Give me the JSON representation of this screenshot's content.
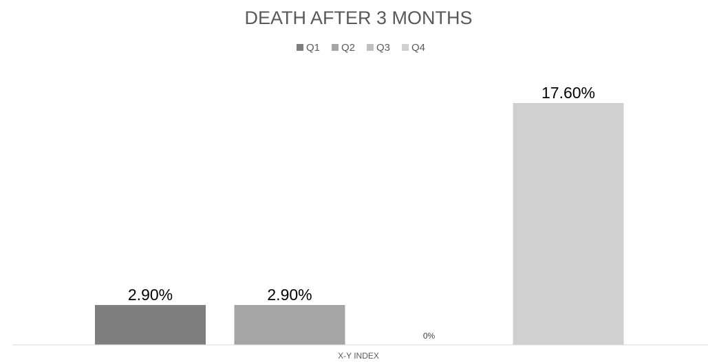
{
  "chart_data": {
    "type": "bar",
    "title": "DEATH AFTER 3 MONTHS",
    "xlabel": "X-Y INDEX",
    "ylabel": "",
    "categories": [
      "X-Y INDEX"
    ],
    "series": [
      {
        "name": "Q1",
        "values": [
          2.9
        ],
        "label": "2.90%",
        "color": "#7f7f7f"
      },
      {
        "name": "Q2",
        "values": [
          2.9
        ],
        "label": "2.90%",
        "color": "#a5a5a5"
      },
      {
        "name": "Q3",
        "values": [
          0
        ],
        "label": "0%",
        "color": "#bfbfbf"
      },
      {
        "name": "Q4",
        "values": [
          17.6
        ],
        "label": "17.60%",
        "color": "#d0d0d0"
      }
    ],
    "ylim": [
      0,
      18.8
    ],
    "grid": false,
    "legend_position": "top"
  }
}
